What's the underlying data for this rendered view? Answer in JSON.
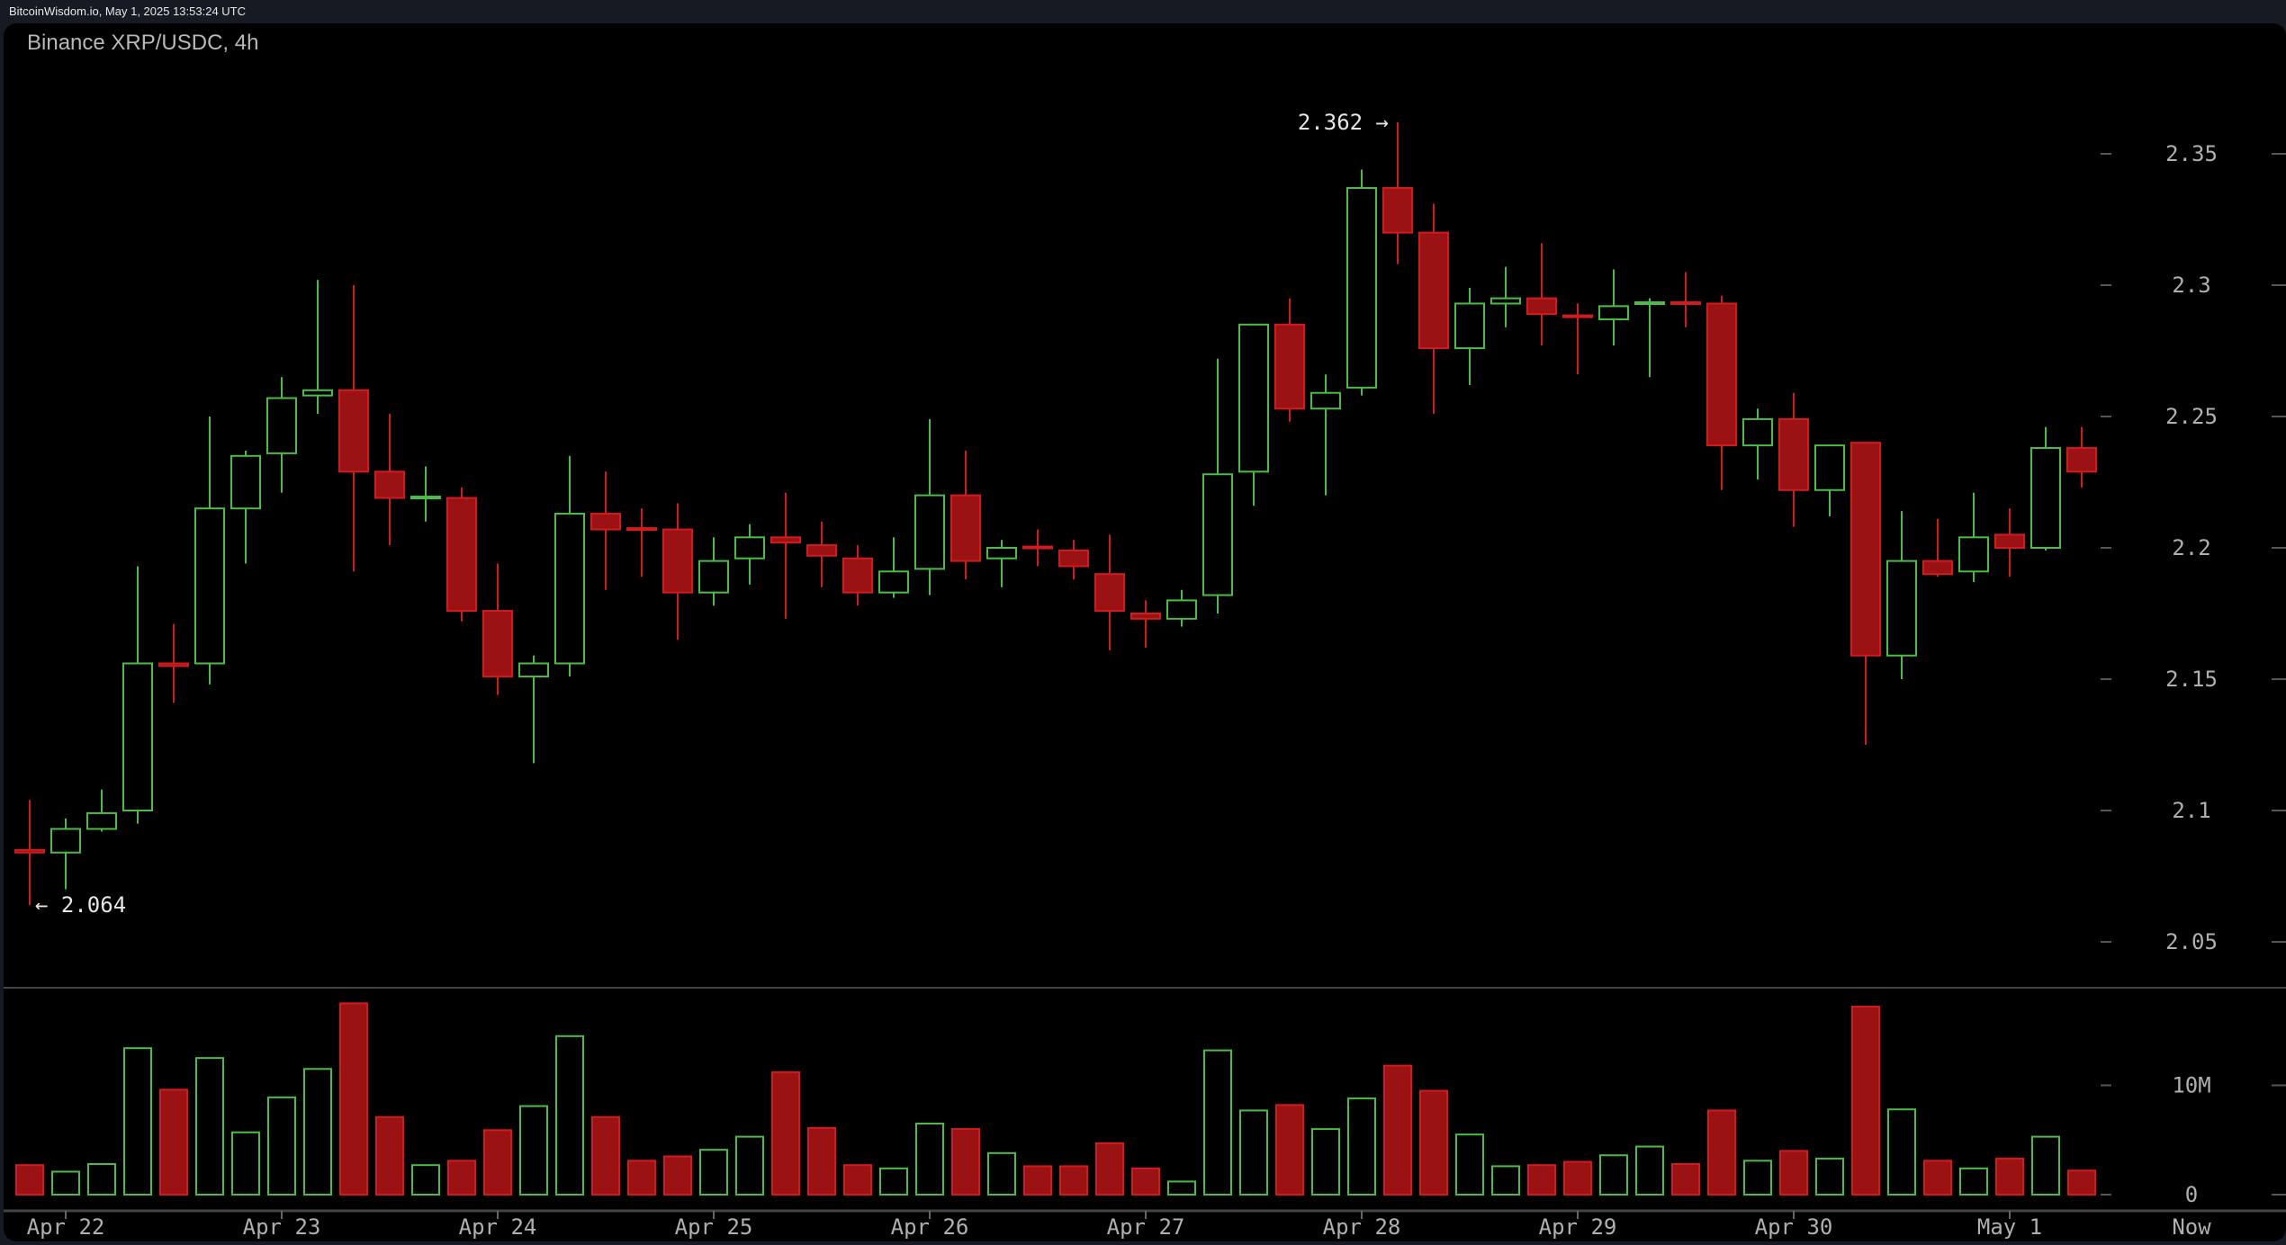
{
  "header": {
    "source_line": "BitcoinWisdom.io, May 1, 2025 13:53:24 UTC"
  },
  "chart_title": "Binance XRP/USDC, 4h",
  "colors": {
    "up": "#4cbb47",
    "down_fill": "#9b1214",
    "down_stroke": "#d01c1c",
    "axis_text": "#b0b0b0",
    "grid_tick": "#555555",
    "background": "#000000"
  },
  "chart_data": {
    "type": "candlestick",
    "title": "Binance XRP/USDC, 4h",
    "interval": "4h",
    "price_axis": {
      "ticks": [
        2.05,
        2.1,
        2.15,
        2.2,
        2.25,
        2.3,
        2.35
      ],
      "tick_labels": [
        "2.05",
        "2.1",
        "2.15",
        "2.2",
        "2.25",
        "2.3",
        "2.35"
      ],
      "range": [
        2.03,
        2.37
      ]
    },
    "volume_axis": {
      "ticks": [
        0,
        10000000
      ],
      "tick_labels": [
        "0",
        "10M"
      ]
    },
    "x_axis": {
      "tick_labels": [
        "Apr 22",
        "Apr 23",
        "Apr 24",
        "Apr 25",
        "Apr 26",
        "Apr 27",
        "Apr 28",
        "Apr 29",
        "Apr 30",
        "May 1",
        "Now"
      ]
    },
    "annotations": {
      "high": {
        "label": "2.362 →",
        "value": 2.362,
        "index": 38
      },
      "low": {
        "label": "← 2.064",
        "value": 2.064,
        "index": 0
      }
    },
    "candles": [
      [
        2.085,
        2.104,
        2.064,
        2.084,
        2.7
      ],
      [
        2.084,
        2.097,
        2.07,
        2.093,
        2.1
      ],
      [
        2.093,
        2.108,
        2.092,
        2.099,
        2.8
      ],
      [
        2.1,
        2.193,
        2.095,
        2.156,
        13.4
      ],
      [
        2.156,
        2.171,
        2.141,
        2.155,
        9.6
      ],
      [
        2.156,
        2.25,
        2.148,
        2.215,
        12.5
      ],
      [
        2.215,
        2.237,
        2.194,
        2.235,
        5.7
      ],
      [
        2.236,
        2.265,
        2.221,
        2.257,
        8.9
      ],
      [
        2.258,
        2.302,
        2.251,
        2.26,
        11.5
      ],
      [
        2.26,
        2.3,
        2.191,
        2.229,
        17.5
      ],
      [
        2.229,
        2.251,
        2.201,
        2.219,
        7.1
      ],
      [
        2.219,
        2.231,
        2.21,
        2.2195,
        2.7
      ],
      [
        2.219,
        2.223,
        2.172,
        2.176,
        3.1
      ],
      [
        2.176,
        2.194,
        2.144,
        2.151,
        5.9
      ],
      [
        2.151,
        2.159,
        2.118,
        2.156,
        8.1
      ],
      [
        2.156,
        2.235,
        2.151,
        2.213,
        14.5
      ],
      [
        2.213,
        2.229,
        2.184,
        2.207,
        7.1
      ],
      [
        2.2075,
        2.215,
        2.189,
        2.207,
        3.1
      ],
      [
        2.207,
        2.217,
        2.165,
        2.183,
        3.5
      ],
      [
        2.183,
        2.204,
        2.178,
        2.195,
        4.1
      ],
      [
        2.196,
        2.209,
        2.186,
        2.204,
        5.3
      ],
      [
        2.204,
        2.221,
        2.173,
        2.202,
        11.2
      ],
      [
        2.201,
        2.21,
        2.185,
        2.197,
        6.1
      ],
      [
        2.196,
        2.201,
        2.178,
        2.183,
        2.7
      ],
      [
        2.183,
        2.204,
        2.181,
        2.191,
        2.4
      ],
      [
        2.192,
        2.249,
        2.182,
        2.22,
        6.5
      ],
      [
        2.22,
        2.237,
        2.188,
        2.195,
        6.0
      ],
      [
        2.196,
        2.203,
        2.185,
        2.2,
        3.8
      ],
      [
        2.2005,
        2.207,
        2.193,
        2.2,
        2.6
      ],
      [
        2.199,
        2.203,
        2.188,
        2.193,
        2.6
      ],
      [
        2.19,
        2.205,
        2.161,
        2.176,
        4.7
      ],
      [
        2.175,
        2.18,
        2.162,
        2.173,
        2.4
      ],
      [
        2.173,
        2.184,
        2.17,
        2.18,
        1.2
      ],
      [
        2.182,
        2.272,
        2.175,
        2.228,
        13.2
      ],
      [
        2.229,
        2.285,
        2.216,
        2.285,
        7.7
      ],
      [
        2.285,
        2.295,
        2.248,
        2.253,
        8.2
      ],
      [
        2.253,
        2.266,
        2.22,
        2.259,
        6.0
      ],
      [
        2.261,
        2.344,
        2.258,
        2.337,
        8.8
      ],
      [
        2.337,
        2.362,
        2.308,
        2.32,
        11.8
      ],
      [
        2.32,
        2.331,
        2.251,
        2.276,
        9.5
      ],
      [
        2.276,
        2.299,
        2.262,
        2.293,
        5.5
      ],
      [
        2.293,
        2.307,
        2.284,
        2.295,
        2.6
      ],
      [
        2.295,
        2.316,
        2.277,
        2.289,
        2.7
      ],
      [
        2.2885,
        2.293,
        2.266,
        2.288,
        3.0
      ],
      [
        2.287,
        2.306,
        2.277,
        2.292,
        3.6
      ],
      [
        2.293,
        2.295,
        2.265,
        2.2935,
        4.4
      ],
      [
        2.2935,
        2.305,
        2.284,
        2.293,
        2.8
      ],
      [
        2.293,
        2.296,
        2.222,
        2.239,
        7.7
      ],
      [
        2.239,
        2.253,
        2.226,
        2.249,
        3.1
      ],
      [
        2.249,
        2.259,
        2.208,
        2.222,
        4.0
      ],
      [
        2.222,
        2.239,
        2.212,
        2.239,
        3.3
      ],
      [
        2.24,
        2.24,
        2.125,
        2.159,
        17.2
      ],
      [
        2.159,
        2.214,
        2.15,
        2.195,
        7.8
      ],
      [
        2.195,
        2.211,
        2.189,
        2.19,
        3.1
      ],
      [
        2.191,
        2.221,
        2.187,
        2.204,
        2.4
      ],
      [
        2.205,
        2.215,
        2.189,
        2.2,
        3.3
      ],
      [
        2.2,
        2.246,
        2.199,
        2.238,
        5.3
      ],
      [
        2.238,
        2.246,
        2.223,
        2.229,
        2.2
      ]
    ],
    "candle_fields": [
      "open",
      "high",
      "low",
      "close",
      "volume_millions"
    ]
  }
}
